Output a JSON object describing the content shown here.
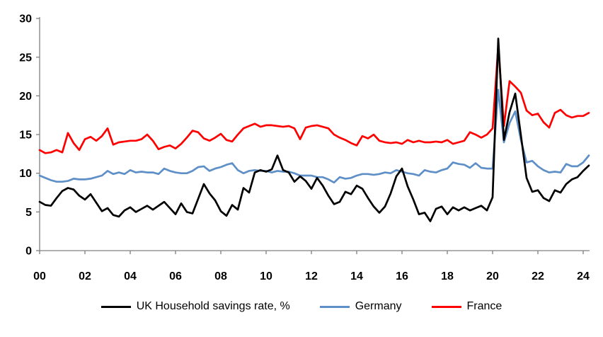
{
  "chart_data": {
    "type": "line",
    "title": "",
    "xlabel": "",
    "ylabel": "",
    "frequency": "quarterly",
    "period_start": "2000Q1",
    "period_end": "2024Q2",
    "x_step_years": 0.25,
    "x_tick_labels": [
      "00",
      "02",
      "04",
      "06",
      "08",
      "10",
      "12",
      "14",
      "16",
      "18",
      "20",
      "22",
      "24"
    ],
    "y_ticks": [
      0,
      5,
      10,
      15,
      20,
      25,
      30
    ],
    "ylim": [
      0,
      30
    ],
    "grid": false,
    "legend_position": "bottom",
    "axis_color": "#808080",
    "background_color": "#FFFFFF",
    "series": [
      {
        "name": "UK Household savings rate, %",
        "color": "#000000",
        "values": [
          6.3,
          5.9,
          5.8,
          6.8,
          7.7,
          8.1,
          7.9,
          7.1,
          6.6,
          7.3,
          6.2,
          5.1,
          5.5,
          4.6,
          4.4,
          5.2,
          5.6,
          5.0,
          5.4,
          5.8,
          5.3,
          5.8,
          6.3,
          5.5,
          4.7,
          6.1,
          5.0,
          4.8,
          6.7,
          8.6,
          7.4,
          6.5,
          5.1,
          4.5,
          5.9,
          5.3,
          8.1,
          7.5,
          10.1,
          10.4,
          10.2,
          10.5,
          12.3,
          10.4,
          10.1,
          8.9,
          9.6,
          9.0,
          8.0,
          9.4,
          8.4,
          7.1,
          6.0,
          6.3,
          7.6,
          7.3,
          8.4,
          8.0,
          6.8,
          5.7,
          4.9,
          5.7,
          7.4,
          9.6,
          10.6,
          8.3,
          6.6,
          4.7,
          4.9,
          3.8,
          5.4,
          5.7,
          4.7,
          5.6,
          5.2,
          5.6,
          5.2,
          5.5,
          5.8,
          5.2,
          6.9,
          27.4,
          14.3,
          17.9,
          20.3,
          14.9,
          9.4,
          7.6,
          7.8,
          6.8,
          6.4,
          7.8,
          7.5,
          8.6,
          9.2,
          9.5,
          10.3,
          11.0
        ]
      },
      {
        "name": "Germany",
        "color": "#5E8FC7",
        "values": [
          9.7,
          9.4,
          9.1,
          8.9,
          8.9,
          9.0,
          9.3,
          9.2,
          9.2,
          9.3,
          9.5,
          9.7,
          10.3,
          9.9,
          10.1,
          9.9,
          10.4,
          10.1,
          10.2,
          10.1,
          10.1,
          9.9,
          10.6,
          10.3,
          10.1,
          10.0,
          10.0,
          10.3,
          10.8,
          10.9,
          10.3,
          10.6,
          10.8,
          11.1,
          11.3,
          10.4,
          10.0,
          10.3,
          10.4,
          10.3,
          10.3,
          10.1,
          10.3,
          10.2,
          10.2,
          10.0,
          9.7,
          9.7,
          9.7,
          9.5,
          9.5,
          9.2,
          8.8,
          9.5,
          9.3,
          9.4,
          9.7,
          9.9,
          9.9,
          9.8,
          9.9,
          10.1,
          10.0,
          10.4,
          10.2,
          10.0,
          9.9,
          9.7,
          10.4,
          10.2,
          10.1,
          10.4,
          10.6,
          11.4,
          11.2,
          11.1,
          10.7,
          11.3,
          10.7,
          10.6,
          10.6,
          20.8,
          14.0,
          16.5,
          18.0,
          14.3,
          11.4,
          11.6,
          10.9,
          10.4,
          10.1,
          10.2,
          10.1,
          11.2,
          10.9,
          10.9,
          11.4,
          12.3
        ]
      },
      {
        "name": "France",
        "color": "#FF0000",
        "values": [
          13.0,
          12.6,
          12.7,
          13.0,
          12.7,
          15.2,
          13.9,
          13.0,
          14.4,
          14.7,
          14.2,
          14.8,
          15.8,
          13.7,
          14.0,
          14.1,
          14.2,
          14.2,
          14.4,
          15.0,
          14.2,
          13.1,
          13.4,
          13.6,
          13.2,
          13.8,
          14.6,
          15.5,
          15.3,
          14.5,
          14.2,
          14.6,
          15.1,
          14.3,
          14.1,
          15.0,
          15.8,
          16.1,
          16.4,
          16.0,
          16.2,
          16.2,
          16.1,
          16.0,
          16.1,
          15.8,
          14.4,
          15.9,
          16.1,
          16.2,
          16.0,
          15.8,
          15.0,
          14.6,
          14.3,
          13.9,
          13.6,
          14.8,
          14.5,
          15.0,
          14.2,
          14.0,
          13.9,
          14.0,
          13.8,
          14.3,
          14.0,
          14.2,
          14.0,
          14.0,
          14.1,
          14.0,
          14.3,
          13.8,
          14.0,
          14.2,
          15.3,
          15.0,
          14.6,
          15.0,
          15.8,
          26.5,
          16.1,
          21.9,
          21.2,
          20.4,
          18.1,
          17.5,
          17.7,
          16.6,
          15.9,
          17.8,
          18.2,
          17.5,
          17.2,
          17.4,
          17.4,
          17.8
        ]
      }
    ]
  }
}
